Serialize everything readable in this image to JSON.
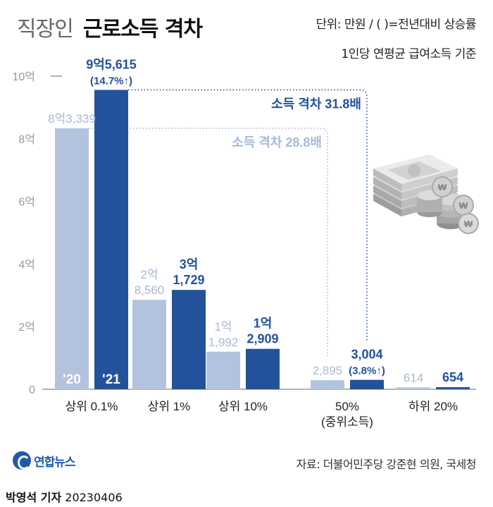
{
  "header": {
    "title_light": "직장인",
    "title_bold": "근로소득 격차",
    "unit_note": "단위: 만원 / ( )=전년대비 상승률",
    "basis_note": "1인당 연평균 급여소득 기준"
  },
  "chart_data": {
    "type": "bar",
    "title": "직장인 근로소득 격차",
    "ylabel": "만원",
    "ylim": [
      0,
      100000
    ],
    "yticks": [
      {
        "value": 0,
        "label": "0"
      },
      {
        "value": 20000,
        "label": "2억"
      },
      {
        "value": 40000,
        "label": "4억"
      },
      {
        "value": 60000,
        "label": "6억"
      },
      {
        "value": 80000,
        "label": "8억"
      },
      {
        "value": 100000,
        "label": "10억"
      }
    ],
    "categories": [
      "상위 0.1%",
      "상위 1%",
      "상위 10%",
      "50%\n(중위소득)",
      "하위 20%"
    ],
    "series": [
      {
        "name": "'20",
        "color": "#b3c3de",
        "values": [
          83339,
          28560,
          11992,
          2895,
          614
        ],
        "labels": [
          [
            "8억3,339"
          ],
          [
            "2억",
            "8,560"
          ],
          [
            "1억",
            "1,992"
          ],
          [
            "2,895"
          ],
          [
            "614"
          ]
        ]
      },
      {
        "name": "'21",
        "color": "#24529a",
        "values": [
          95615,
          31729,
          12909,
          3004,
          654
        ],
        "labels": [
          [
            "9억5,615",
            "(14.7%↑)"
          ],
          [
            "3억",
            "1,729"
          ],
          [
            "1억",
            "2,909"
          ],
          [
            "3,004",
            "(3.8%↑)"
          ],
          [
            "654"
          ]
        ]
      }
    ],
    "annotations": [
      {
        "text": "소득 격차 31.8배",
        "series": "'21",
        "from": "상위 0.1%",
        "to": "50%\n(중위소득)",
        "color": "#24529a"
      },
      {
        "text": "소득 격차 28.8배",
        "series": "'20",
        "from": "상위 0.1%",
        "to": "50%\n(중위소득)",
        "color": "#a7b9d9"
      }
    ]
  },
  "logo": {
    "text": "연합뉴스",
    "icon": "yonhap-logo-icon"
  },
  "source": "자료: 더불어민주당 강준현 의원, 국세청",
  "byline": {
    "reporter": "박영석 기자",
    "date": "20230406"
  },
  "illustration": {
    "icon": "money-stack-coins-icon"
  }
}
